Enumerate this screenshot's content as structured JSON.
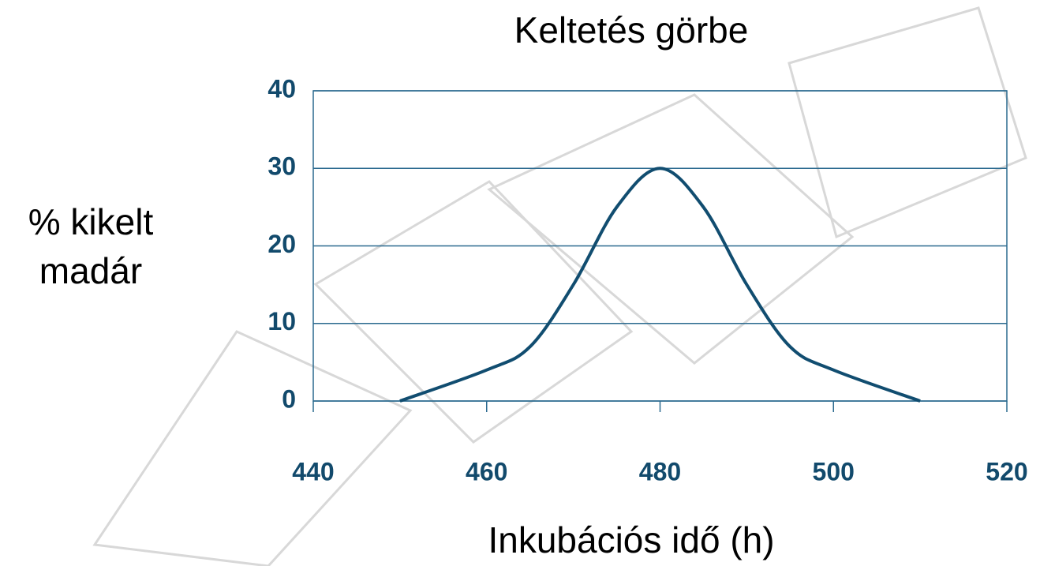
{
  "chart_data": {
    "type": "line",
    "title": "Keltetés görbe",
    "xlabel": "Inkubációs idő (h)",
    "ylabel": [
      "% kikelt",
      "madár"
    ],
    "x": [
      450,
      460,
      465,
      470,
      475,
      480,
      485,
      490,
      495,
      500,
      510
    ],
    "series": [
      {
        "name": "Keltetés görbe",
        "color": "#114d70",
        "values": [
          0,
          4,
          7,
          15,
          25,
          30,
          25,
          15,
          7,
          4,
          0
        ]
      }
    ],
    "xlim": [
      440,
      520
    ],
    "xticks": [
      440,
      460,
      480,
      500,
      520
    ],
    "ylim": [
      0,
      40
    ],
    "yticks": [
      0,
      10,
      20,
      30,
      40
    ],
    "grid": true
  }
}
